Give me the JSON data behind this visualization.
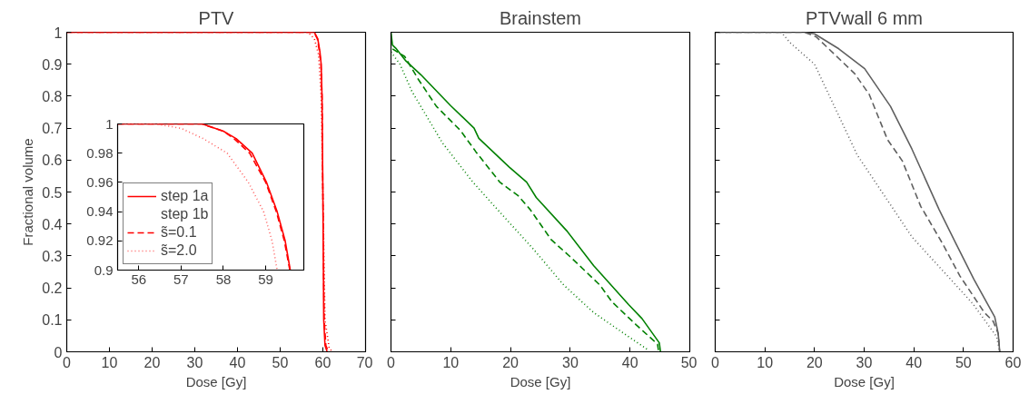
{
  "chart_data": [
    {
      "type": "line",
      "title": "PTV",
      "xlabel": "Dose [Gy]",
      "ylabel": "Fractional volume",
      "xlim": [
        0,
        70
      ],
      "ylim": [
        0,
        1
      ],
      "xticks": [
        0,
        10,
        20,
        30,
        40,
        50,
        60,
        70
      ],
      "yticks": [
        0,
        0.1,
        0.2,
        0.3,
        0.4,
        0.5,
        0.6,
        0.7,
        0.8,
        0.9,
        1
      ],
      "grid": false,
      "series": [
        {
          "color": "#ff0000",
          "line_style": "solid",
          "x": [
            0,
            58,
            58.8,
            59.3,
            59.6,
            59.8,
            60,
            60.2,
            60.5,
            61
          ],
          "values": [
            1,
            1,
            0.98,
            0.94,
            0.9,
            0.8,
            0.5,
            0.1,
            0.02,
            0
          ]
        },
        {
          "color": "#ff0000",
          "line_style": "dashed",
          "x": [
            0,
            57.9,
            58.7,
            59.2,
            59.55,
            59.8,
            60,
            60.3,
            60.7,
            61.3
          ],
          "values": [
            1,
            1,
            0.98,
            0.94,
            0.9,
            0.8,
            0.5,
            0.1,
            0.02,
            0
          ]
        },
        {
          "color": "#ff0000",
          "line_style": "dotted",
          "x": [
            0,
            56.5,
            58,
            59,
            59.6,
            60,
            60.5,
            61.5,
            62.3
          ],
          "values": [
            1,
            1,
            0.98,
            0.93,
            0.8,
            0.5,
            0.1,
            0.01,
            0
          ]
        }
      ]
    },
    {
      "type": "line",
      "xlim": [
        55.5,
        59.9
      ],
      "ylim": [
        0.9,
        1
      ],
      "xticks": [
        56,
        57,
        58,
        59
      ],
      "yticks": [
        0.9,
        0.92,
        0.94,
        0.96,
        0.98,
        1
      ],
      "grid": false,
      "legend": "bottom left",
      "annotations": [
        "step 1b"
      ],
      "series": [
        {
          "name": "step 1a",
          "color": "#ff0000",
          "line_style": "solid",
          "x": [
            55.5,
            57.5,
            58.0,
            58.3,
            58.68,
            59.02,
            59.27,
            59.46,
            59.58
          ],
          "values": [
            1,
            1,
            0.995,
            0.99,
            0.98,
            0.96,
            0.94,
            0.92,
            0.9
          ]
        },
        {
          "name": "s̃=0.1",
          "color": "#ff0000",
          "line_style": "dashed",
          "x": [
            55.5,
            57.5,
            58.0,
            58.25,
            58.62,
            59.0,
            59.25,
            59.44,
            59.57
          ],
          "values": [
            1,
            1,
            0.995,
            0.99,
            0.98,
            0.96,
            0.94,
            0.92,
            0.9
          ]
        },
        {
          "name": "s̃=2.0",
          "color": "#ff6060",
          "line_style": "dotted",
          "x": [
            55.5,
            56.4,
            57.0,
            57.52,
            58.09,
            58.59,
            58.95,
            59.15,
            59.27
          ],
          "values": [
            1,
            1,
            0.997,
            0.99,
            0.98,
            0.96,
            0.94,
            0.92,
            0.9
          ]
        }
      ]
    },
    {
      "type": "line",
      "title": "Brainstem",
      "xlabel": "Dose [Gy]",
      "xlim": [
        0,
        50
      ],
      "ylim": [
        0,
        1
      ],
      "xticks": [
        0,
        10,
        20,
        30,
        40,
        50
      ],
      "yticks": [
        0,
        0.1,
        0.2,
        0.3,
        0.4,
        0.5,
        0.6,
        0.7,
        0.8,
        0.9,
        1
      ],
      "grid": false,
      "tick_labels": "x",
      "series": [
        {
          "color": "#008000",
          "line_style": "solid",
          "x": [
            0,
            0.25,
            0.8,
            2.5,
            5,
            10,
            13.9,
            14.7,
            19.8,
            22.7,
            24.3,
            29.4,
            33.9,
            39.8,
            42,
            44.9,
            45.1
          ],
          "values": [
            1,
            0.96,
            0.95,
            0.91,
            0.867,
            0.77,
            0.7,
            0.668,
            0.578,
            0.531,
            0.483,
            0.379,
            0.27,
            0.147,
            0.104,
            0.028,
            0
          ]
        },
        {
          "color": "#008000",
          "line_style": "dashed",
          "x": [
            0.25,
            2.3,
            4.56,
            7.6,
            11.65,
            14.2,
            18.2,
            21.3,
            23.3,
            26.8,
            29.9,
            34.95,
            37,
            41,
            44.6,
            44.8
          ],
          "values": [
            0.948,
            0.924,
            0.853,
            0.768,
            0.692,
            0.626,
            0.531,
            0.488,
            0.445,
            0.351,
            0.299,
            0.209,
            0.156,
            0.085,
            0.024,
            0
          ]
        },
        {
          "color": "#008000",
          "line_style": "dotted",
          "x": [
            0,
            1.5,
            3.5,
            8.6,
            13.7,
            18.7,
            23.8,
            28.9,
            33.9,
            39,
            43.1
          ],
          "values": [
            0.938,
            0.9,
            0.815,
            0.654,
            0.531,
            0.427,
            0.322,
            0.209,
            0.123,
            0.057,
            0.005
          ]
        }
      ]
    },
    {
      "type": "line",
      "title": "PTVwall 6 mm",
      "xlabel": "Dose [Gy]",
      "xlim": [
        0,
        60
      ],
      "ylim": [
        0,
        1
      ],
      "xticks": [
        0,
        10,
        20,
        30,
        40,
        50,
        60
      ],
      "yticks": [
        0,
        0.1,
        0.2,
        0.3,
        0.4,
        0.5,
        0.6,
        0.7,
        0.8,
        0.9,
        1
      ],
      "grid": false,
      "tick_labels": "x",
      "series": [
        {
          "color": "#606060",
          "line_style": "solid",
          "x": [
            0,
            18,
            20,
            24.9,
            30.1,
            35.3,
            39.6,
            45.1,
            48.4,
            52.1,
            56.3,
            57,
            57.3
          ],
          "values": [
            1,
            1,
            0.995,
            0.948,
            0.886,
            0.768,
            0.635,
            0.445,
            0.341,
            0.227,
            0.109,
            0.057,
            0
          ]
        },
        {
          "color": "#606060",
          "line_style": "dashed",
          "x": [
            0,
            18,
            20.3,
            28,
            31,
            34.7,
            37.7,
            41.4,
            45.7,
            49.3,
            54.2,
            56,
            57,
            57.3
          ],
          "values": [
            1,
            1,
            0.986,
            0.872,
            0.806,
            0.664,
            0.597,
            0.455,
            0.341,
            0.237,
            0.123,
            0.095,
            0.057,
            0
          ]
        },
        {
          "color": "#606060",
          "line_style": "dotted",
          "x": [
            0,
            13.3,
            15.1,
            20,
            24.3,
            28.6,
            33.5,
            39.6,
            45.7,
            51.8,
            56.7,
            57.3
          ],
          "values": [
            1,
            1,
            0.967,
            0.9,
            0.758,
            0.616,
            0.502,
            0.36,
            0.256,
            0.152,
            0.047,
            0
          ]
        }
      ]
    }
  ]
}
